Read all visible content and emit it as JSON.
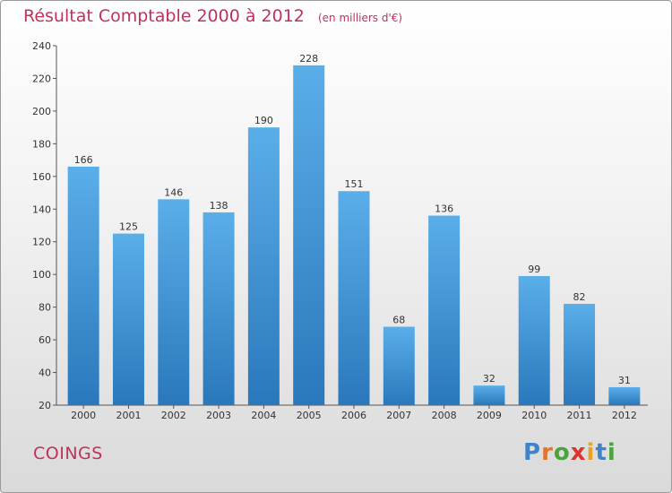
{
  "chart_data": {
    "type": "bar",
    "title": "Résultat Comptable 2000 à 2012",
    "subtitle": "(en milliers d'€)",
    "categories": [
      "2000",
      "2001",
      "2002",
      "2003",
      "2004",
      "2005",
      "2006",
      "2007",
      "2008",
      "2009",
      "2010",
      "2011",
      "2012"
    ],
    "values": [
      166,
      125,
      146,
      138,
      190,
      228,
      151,
      68,
      136,
      32,
      99,
      82,
      31
    ],
    "ylim": [
      20,
      240
    ],
    "yticks": [
      20,
      40,
      60,
      80,
      100,
      120,
      140,
      160,
      180,
      200,
      220,
      240
    ],
    "xlabel": "",
    "ylabel": "",
    "grid": false,
    "colors": {
      "bar_light": "#5aaee9",
      "bar_dark": "#2a78bc",
      "title": "#c0325a"
    }
  },
  "footer": {
    "place_name": "COINGS",
    "brand_letters": [
      {
        "char": "P",
        "color": "#3f84c9"
      },
      {
        "char": "r",
        "color": "#e0762b"
      },
      {
        "char": "o",
        "color": "#4aa33b"
      },
      {
        "char": "x",
        "color": "#d9362f"
      },
      {
        "char": "i",
        "color": "#e9a31e"
      },
      {
        "char": "t",
        "color": "#3f84c9"
      },
      {
        "char": "i",
        "color": "#4aa33b"
      }
    ]
  }
}
